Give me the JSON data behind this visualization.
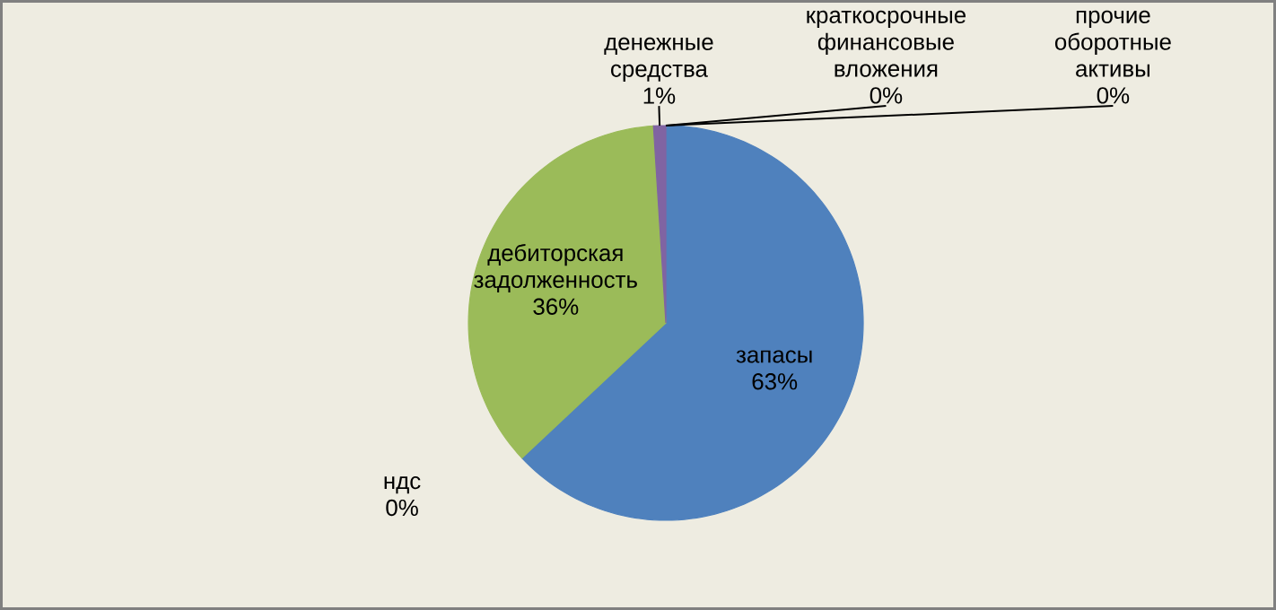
{
  "chart_data": {
    "type": "pie",
    "categories": [
      "запасы",
      "ндс",
      "дебиторская задолженность",
      "денежные средства",
      "краткосрочные финансовые вложения",
      "прочие оборотные активы"
    ],
    "values": [
      63,
      0,
      36,
      1,
      0,
      0
    ],
    "value_labels": [
      "63%",
      "0%",
      "36%",
      "1%",
      "0%",
      "0%"
    ],
    "colors": [
      "#4f81bd",
      "#c0504d",
      "#9bbb59",
      "#8064a2",
      "#4bacc6",
      "#f79646"
    ]
  }
}
